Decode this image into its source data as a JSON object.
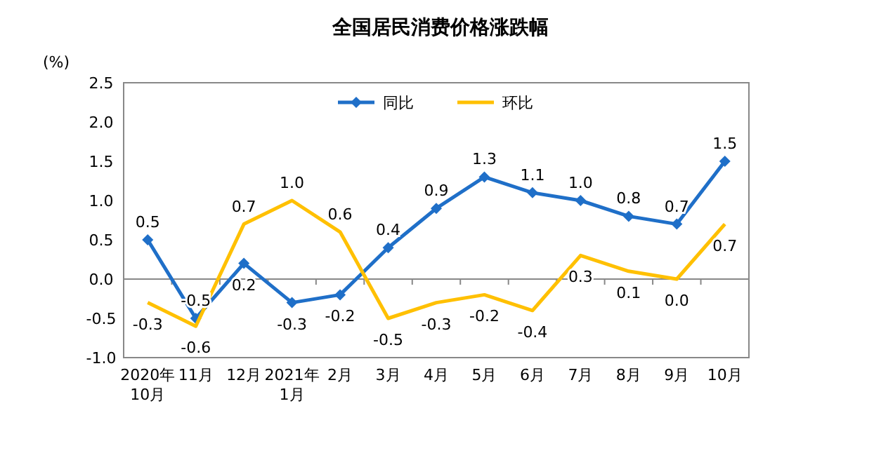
{
  "chart_data": {
    "type": "line",
    "title": "全国居民消费价格涨跌幅",
    "ylabel": "(%)",
    "categories": [
      "2020年\n10月",
      "11月",
      "12月",
      "2021年\n1月",
      "2月",
      "3月",
      "4月",
      "5月",
      "6月",
      "7月",
      "8月",
      "9月",
      "10月"
    ],
    "series": [
      {
        "name": "同比",
        "color": "#1f6fc8",
        "marker": "diamond",
        "values": [
          0.5,
          -0.5,
          0.2,
          -0.3,
          -0.2,
          0.4,
          0.9,
          1.3,
          1.1,
          1.0,
          0.8,
          0.7,
          1.5
        ],
        "value_labels": [
          "0.5",
          "-0.5",
          "0.2",
          "-0.3",
          "-0.2",
          "0.4",
          "0.9",
          "1.3",
          "1.1",
          "1.0",
          "0.8",
          "0.7",
          "1.5"
        ]
      },
      {
        "name": "环比",
        "color": "#ffc000",
        "marker": "none",
        "values": [
          -0.3,
          -0.6,
          0.7,
          1.0,
          0.6,
          -0.5,
          -0.3,
          -0.2,
          -0.4,
          0.3,
          0.1,
          0.0,
          0.7
        ],
        "value_labels": [
          "-0.3",
          "-0.6",
          "0.7",
          "1.0",
          "0.6",
          "-0.5",
          "-0.3",
          "-0.2",
          "-0.4",
          "0.3",
          "0.1",
          "0.0",
          "0.7"
        ]
      }
    ],
    "ylim": [
      -1.0,
      2.5
    ],
    "yticks": [
      {
        "value": -1.0,
        "label": "-1.0"
      },
      {
        "value": -0.5,
        "label": "-0.5"
      },
      {
        "value": 0,
        "label": "0.0"
      },
      {
        "value": 0.5,
        "label": "0.5"
      },
      {
        "value": 1.0,
        "label": "1.0"
      },
      {
        "value": 1.5,
        "label": "1.5"
      },
      {
        "value": 2.0,
        "label": "2.0"
      },
      {
        "value": 2.5,
        "label": "2.5"
      }
    ],
    "legend": "top"
  }
}
